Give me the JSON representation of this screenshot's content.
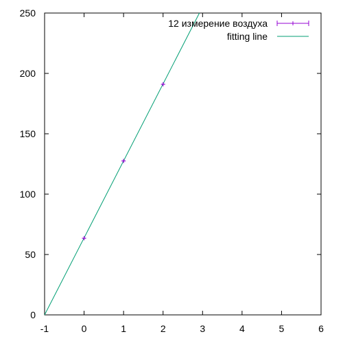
{
  "chart_data": {
    "type": "scatter",
    "xlim": [
      -1,
      6
    ],
    "ylim": [
      0,
      250
    ],
    "x_ticks": [
      "-1",
      "0",
      "1",
      "2",
      "3",
      "4",
      "5",
      "6"
    ],
    "y_ticks": [
      "0",
      "50",
      "100",
      "150",
      "200",
      "250"
    ],
    "grid": false,
    "legend_position": "top-right",
    "series": [
      {
        "name": "12 измерение воздуха",
        "kind": "points-with-errorbars",
        "color": "#9400d3",
        "points": [
          {
            "x": 0,
            "y": 63.5
          },
          {
            "x": 1,
            "y": 127.5
          },
          {
            "x": 2,
            "y": 191
          }
        ]
      },
      {
        "name": "fitting line",
        "kind": "line",
        "color": "#009e73",
        "x": [
          -1,
          2.92
        ],
        "y": [
          0,
          250
        ]
      }
    ]
  }
}
